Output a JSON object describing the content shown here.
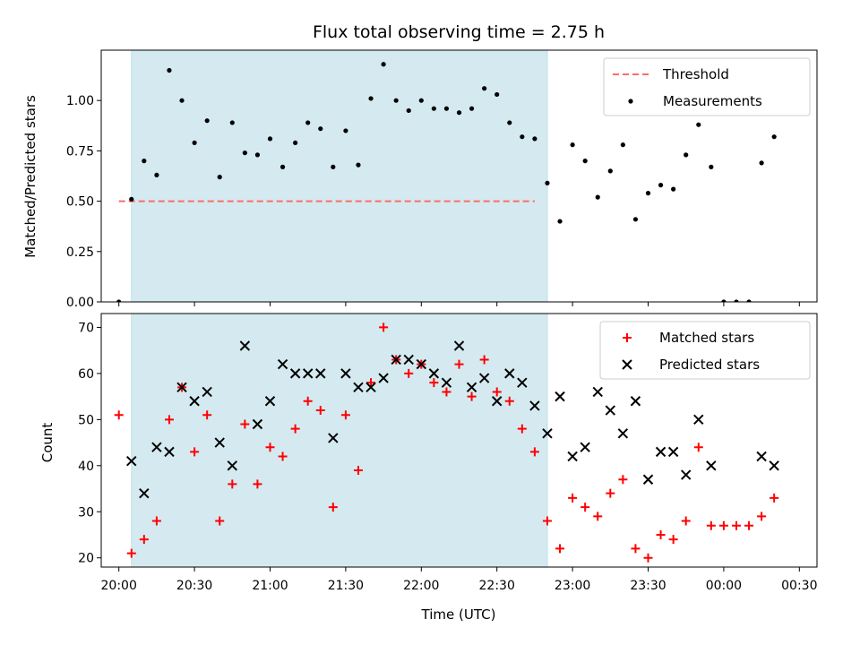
{
  "chart_data": [
    {
      "type": "scatter",
      "title": "Flux total observing time = 2.75 h",
      "xlabel": "",
      "ylabel": "Matched/Predicted stars",
      "ylim": [
        0,
        1.25
      ],
      "yticks": [
        "0.00",
        "0.25",
        "0.50",
        "0.75",
        "1.00"
      ],
      "grid": false,
      "legend": "top-right",
      "shaded_region": {
        "x_start": "20:05",
        "x_end": "22:50",
        "color": "#d4eaf0"
      },
      "series": [
        {
          "name": "Threshold",
          "style": "dashed-line",
          "color": "#ff6a6a",
          "x": [
            "20:00",
            "22:45"
          ],
          "y": [
            0.5,
            0.5
          ]
        },
        {
          "name": "Measurements",
          "style": "dot",
          "color": "#000000",
          "x": [
            "20:00",
            "20:05",
            "20:10",
            "20:15",
            "20:20",
            "20:25",
            "20:30",
            "20:35",
            "20:40",
            "20:45",
            "20:50",
            "20:55",
            "21:00",
            "21:05",
            "21:10",
            "21:15",
            "21:20",
            "21:25",
            "21:30",
            "21:35",
            "21:40",
            "21:45",
            "21:50",
            "21:55",
            "22:00",
            "22:05",
            "22:10",
            "22:15",
            "22:20",
            "22:25",
            "22:30",
            "22:35",
            "22:40",
            "22:45",
            "22:50",
            "22:55",
            "23:00",
            "23:05",
            "23:10",
            "23:15",
            "23:20",
            "23:25",
            "23:30",
            "23:35",
            "23:40",
            "23:45",
            "23:50",
            "23:55",
            "00:00",
            "00:05",
            "00:10",
            "00:15",
            "00:20"
          ],
          "y": [
            0.0,
            0.51,
            0.7,
            0.63,
            1.15,
            1.0,
            0.79,
            0.9,
            0.62,
            0.89,
            0.74,
            0.73,
            0.81,
            0.67,
            0.79,
            0.89,
            0.86,
            0.67,
            0.85,
            0.68,
            1.01,
            1.18,
            1.0,
            0.95,
            1.0,
            0.96,
            0.96,
            0.94,
            0.96,
            1.06,
            1.03,
            0.89,
            0.82,
            0.81,
            0.59,
            0.4,
            0.78,
            0.7,
            0.52,
            0.65,
            0.78,
            0.41,
            0.54,
            0.58,
            0.56,
            0.73,
            0.88,
            0.67,
            0.0,
            0.0,
            0.0,
            0.69,
            0.82
          ]
        }
      ]
    },
    {
      "type": "scatter",
      "title": "",
      "xlabel": "Time (UTC)",
      "ylabel": "Count",
      "ylim": [
        18,
        73
      ],
      "yticks": [
        "20",
        "30",
        "40",
        "50",
        "60",
        "70"
      ],
      "xticks": [
        "20:00",
        "20:30",
        "21:00",
        "21:30",
        "22:00",
        "22:30",
        "23:00",
        "23:30",
        "00:00",
        "00:30"
      ],
      "grid": false,
      "legend": "top-right",
      "shaded_region": {
        "x_start": "20:05",
        "x_end": "22:50",
        "color": "#d4eaf0"
      },
      "series": [
        {
          "name": "Matched stars",
          "style": "plus",
          "color": "#ff0000",
          "x": [
            "20:00",
            "20:05",
            "20:10",
            "20:15",
            "20:20",
            "20:25",
            "20:30",
            "20:35",
            "20:40",
            "20:45",
            "20:50",
            "20:55",
            "21:00",
            "21:05",
            "21:10",
            "21:15",
            "21:20",
            "21:25",
            "21:30",
            "21:35",
            "21:40",
            "21:45",
            "21:50",
            "21:55",
            "22:00",
            "22:05",
            "22:10",
            "22:15",
            "22:20",
            "22:25",
            "22:30",
            "22:35",
            "22:40",
            "22:45",
            "22:50",
            "22:55",
            "23:00",
            "23:05",
            "23:10",
            "23:15",
            "23:20",
            "23:25",
            "23:30",
            "23:35",
            "23:40",
            "23:45",
            "23:50",
            "23:55",
            "00:00",
            "00:05",
            "00:10",
            "00:15",
            "00:20"
          ],
          "y": [
            51,
            21,
            24,
            28,
            50,
            57,
            43,
            51,
            28,
            36,
            49,
            36,
            44,
            42,
            48,
            54,
            52,
            31,
            51,
            39,
            58,
            70,
            63,
            60,
            62,
            58,
            56,
            62,
            55,
            63,
            56,
            54,
            48,
            43,
            28,
            22,
            33,
            31,
            29,
            34,
            37,
            22,
            20,
            25,
            24,
            28,
            44,
            27,
            27,
            27,
            27,
            29,
            33
          ]
        },
        {
          "name": "Predicted stars",
          "style": "x",
          "color": "#000000",
          "x": [
            "20:05",
            "20:10",
            "20:15",
            "20:20",
            "20:25",
            "20:30",
            "20:35",
            "20:40",
            "20:45",
            "20:50",
            "20:55",
            "21:00",
            "21:05",
            "21:10",
            "21:15",
            "21:20",
            "21:25",
            "21:30",
            "21:35",
            "21:40",
            "21:45",
            "21:50",
            "21:55",
            "22:00",
            "22:05",
            "22:10",
            "22:15",
            "22:20",
            "22:25",
            "22:30",
            "22:35",
            "22:40",
            "22:45",
            "22:50",
            "22:55",
            "23:00",
            "23:05",
            "23:10",
            "23:15",
            "23:20",
            "23:25",
            "23:30",
            "23:35",
            "23:40",
            "23:45",
            "23:50",
            "23:55",
            "00:15",
            "00:20"
          ],
          "y": [
            41,
            34,
            44,
            43,
            57,
            54,
            56,
            45,
            40,
            66,
            49,
            54,
            62,
            60,
            60,
            60,
            46,
            60,
            57,
            57,
            59,
            63,
            63,
            62,
            60,
            58,
            66,
            57,
            59,
            54,
            60,
            58,
            53,
            47,
            55,
            42,
            44,
            56,
            52,
            47,
            54,
            37,
            43,
            43,
            38,
            50,
            40,
            42,
            40
          ]
        }
      ]
    }
  ]
}
